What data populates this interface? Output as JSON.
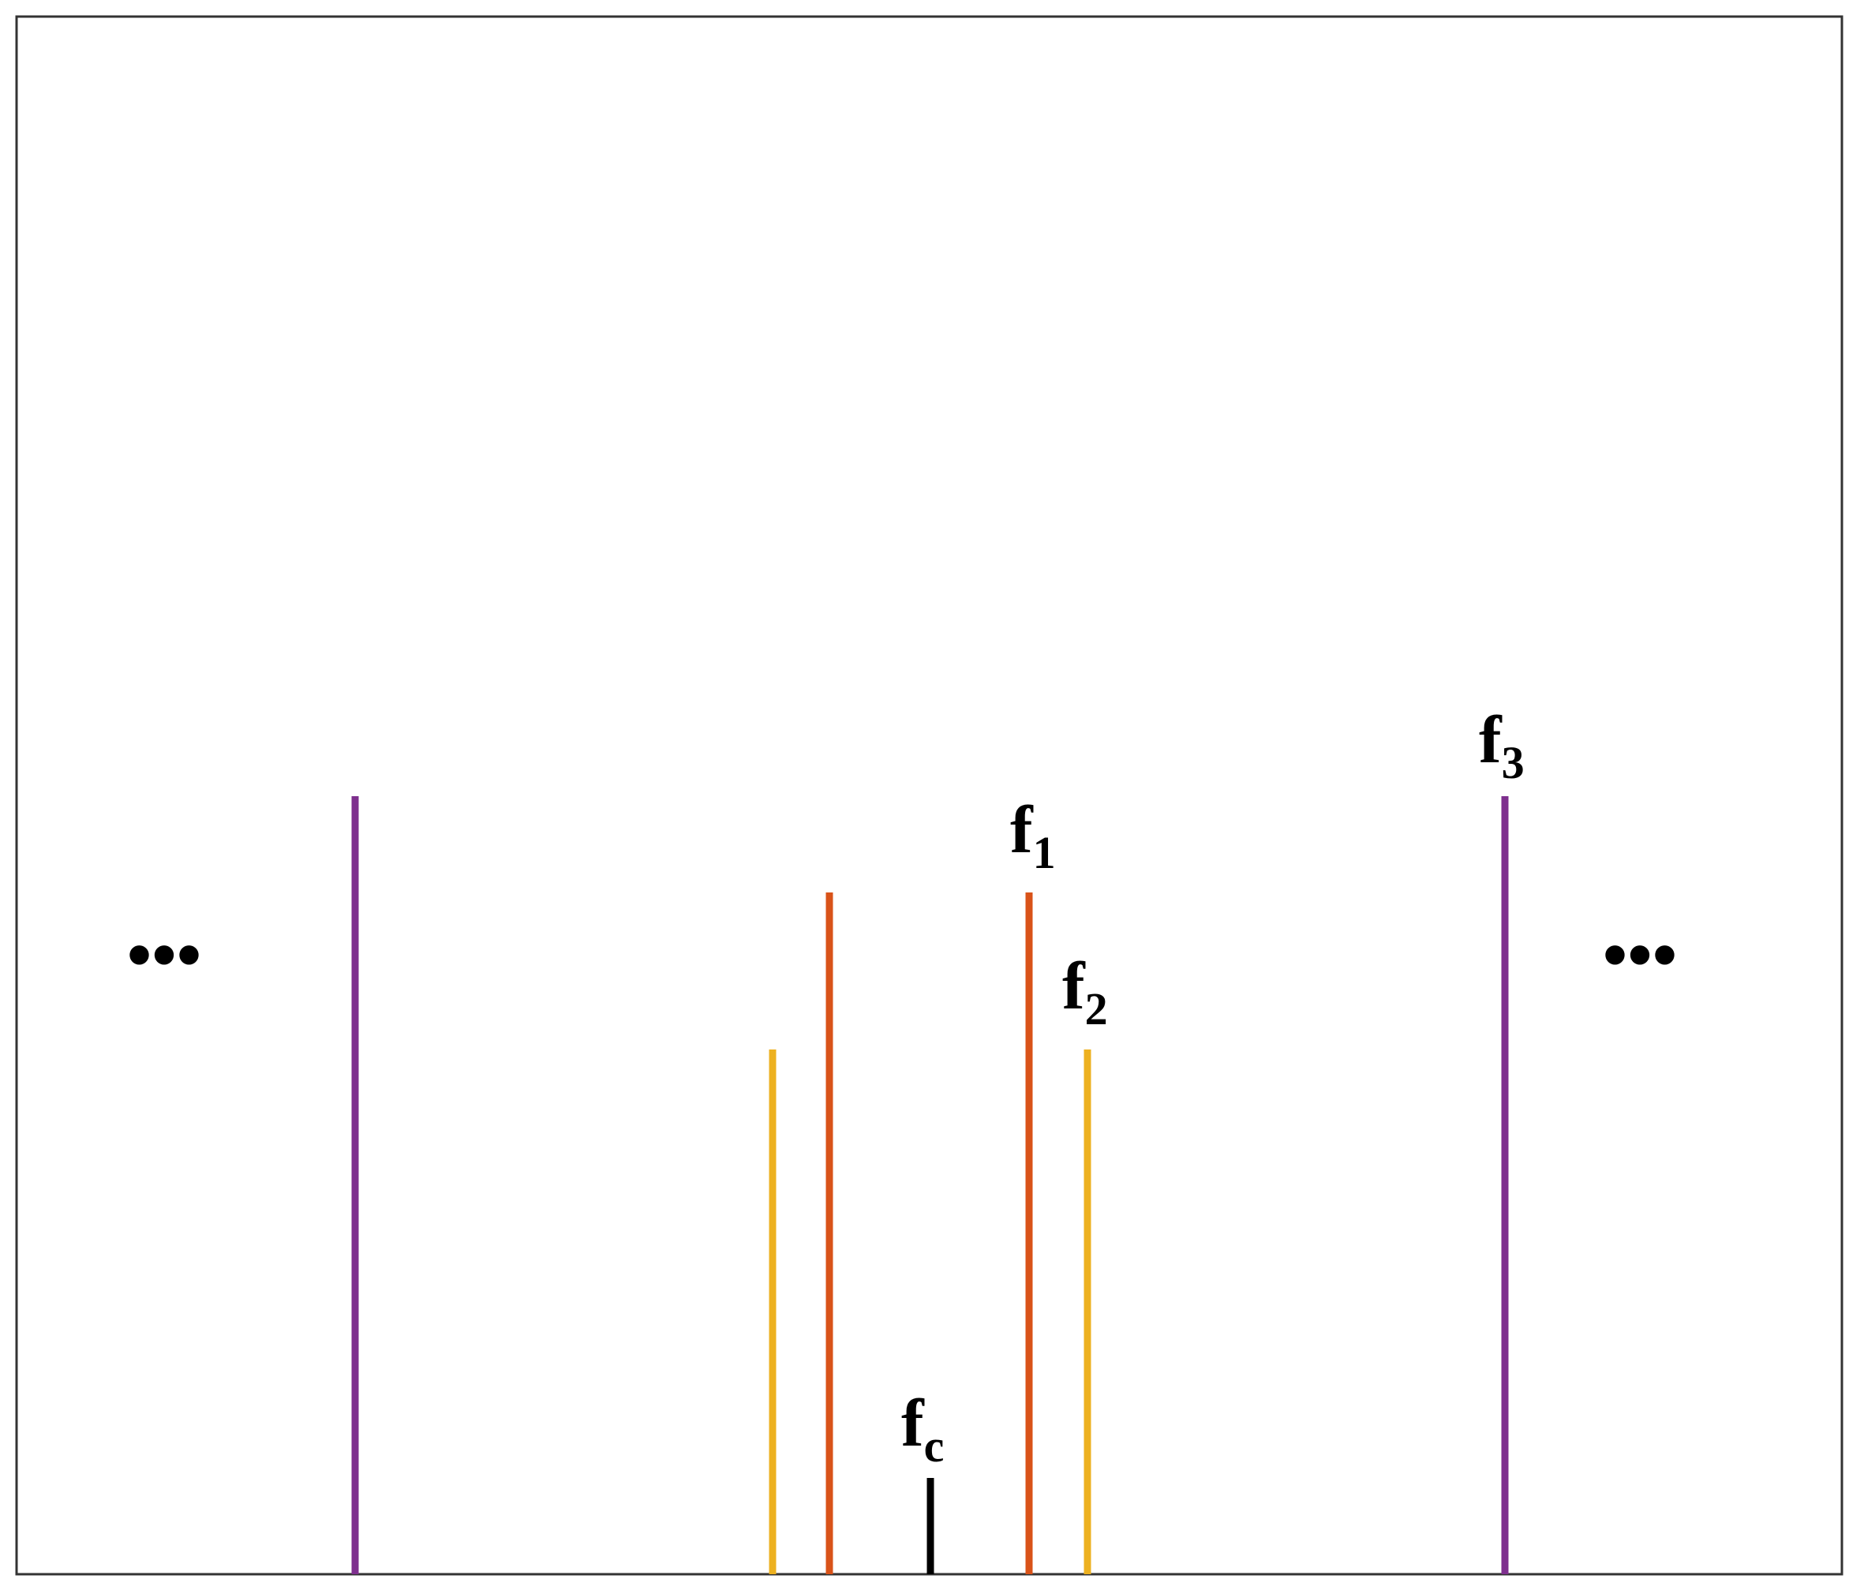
{
  "labels": {
    "f1": {
      "main": "f",
      "sub": "1"
    },
    "f2": {
      "main": "f",
      "sub": "2"
    },
    "f3": {
      "main": "f",
      "sub": "3"
    },
    "fc": {
      "main": "f",
      "sub": "c"
    }
  },
  "ellipsis_left": "•••",
  "ellipsis_right": "•••"
}
